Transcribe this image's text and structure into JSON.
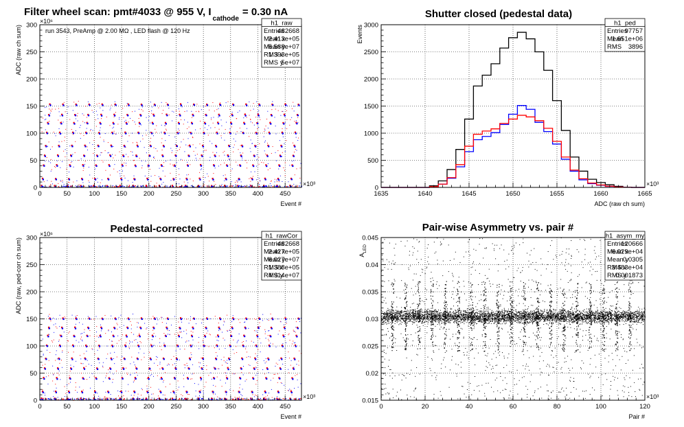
{
  "chart_data": [
    {
      "id": "raw",
      "type": "scatter",
      "title_main": "Filter wheel scan: pmt#4033 @   955 V, I",
      "title_sub": "cathode",
      "title_tail": "= 0.30 nA",
      "annotation": "run 3543, PreAmp @ 2.00 MΩ , LED flash @  120 Hz",
      "xlabel": "Event #",
      "ylabel": "ADC (raw ch sum)",
      "x_exponent": "×10³",
      "y_exponent": "×10⁶",
      "xlim": [
        0,
        480
      ],
      "ylim": [
        0,
        300
      ],
      "xticks": [
        0,
        50,
        100,
        150,
        200,
        250,
        300,
        350,
        400,
        450
      ],
      "yticks": [
        0,
        50,
        100,
        150,
        200,
        250,
        300
      ],
      "grid": true,
      "levels": [
        2,
        15,
        40,
        58,
        76,
        100,
        118,
        133,
        152
      ],
      "cycle_period": 24,
      "series": [
        {
          "color": "#ff0000"
        },
        {
          "color": "#0000ff"
        }
      ],
      "stats": {
        "name": "h1_raw",
        "rows": [
          {
            "label": "Entries",
            "value": "482668"
          },
          {
            "label": "Mean x",
            "value": "2.413e+05"
          },
          {
            "label": "Mean y",
            "value": "5.588e+07"
          },
          {
            "label": "RMS x",
            "value": "1.393e+05"
          },
          {
            "label": "RMS y",
            "value": "5e+07"
          }
        ]
      }
    },
    {
      "id": "ped",
      "type": "histogram",
      "title": "Shutter closed (pedestal data)",
      "xlabel": "ADC (raw ch sum)",
      "ylabel": "Events",
      "x_exponent": "×10³",
      "xlim": [
        1635,
        1665
      ],
      "ylim": [
        0,
        3000
      ],
      "xticks": [
        1635,
        1640,
        1645,
        1650,
        1655,
        1660,
        1665
      ],
      "yticks": [
        0,
        500,
        1000,
        1500,
        2000,
        2500,
        3000
      ],
      "grid": true,
      "x": [
        1641,
        1642,
        1643,
        1644,
        1645,
        1646,
        1647,
        1648,
        1649,
        1650,
        1651,
        1652,
        1653,
        1654,
        1655,
        1656,
        1657,
        1658,
        1659,
        1660,
        1661,
        1662,
        1663
      ],
      "series": [
        {
          "color": "#000000",
          "values": [
            30,
            120,
            330,
            700,
            1260,
            1870,
            2070,
            2280,
            2570,
            2760,
            2860,
            2740,
            2500,
            2160,
            1600,
            1050,
            560,
            300,
            150,
            90,
            50,
            20,
            5
          ]
        },
        {
          "color": "#0000ff",
          "values": [
            15,
            60,
            170,
            380,
            660,
            880,
            940,
            1010,
            1160,
            1350,
            1510,
            1440,
            1200,
            1030,
            800,
            520,
            300,
            140,
            70,
            40,
            20,
            8,
            2
          ]
        },
        {
          "color": "#ff0000",
          "values": [
            15,
            60,
            180,
            420,
            760,
            980,
            1040,
            1080,
            1180,
            1260,
            1330,
            1300,
            1230,
            1090,
            850,
            560,
            320,
            160,
            80,
            45,
            22,
            8,
            2
          ]
        }
      ],
      "stats": {
        "name": "h1_ped",
        "rows": [
          {
            "label": "Entries",
            "value": "97757"
          },
          {
            "label": "Mean",
            "value": "1.651e+06"
          },
          {
            "label": "RMS",
            "value": "3896"
          }
        ]
      }
    },
    {
      "id": "rawCor",
      "type": "scatter",
      "title": "Pedestal-corrected",
      "xlabel": "Event #",
      "ylabel": "ADC (raw, ped-corr ch sum)",
      "x_exponent": "×10³",
      "y_exponent": "×10⁶",
      "xlim": [
        0,
        480
      ],
      "ylim": [
        0,
        300
      ],
      "xticks": [
        0,
        50,
        100,
        150,
        200,
        250,
        300,
        350,
        400,
        450
      ],
      "yticks": [
        0,
        50,
        100,
        150,
        200,
        250,
        300
      ],
      "grid": true,
      "levels": [
        2,
        15,
        40,
        58,
        76,
        100,
        118,
        133,
        150
      ],
      "cycle_period": 24,
      "series": [
        {
          "color": "#ff0000"
        },
        {
          "color": "#0000ff"
        }
      ],
      "stats": {
        "name": "h1_rawCor",
        "rows": [
          {
            "label": "Entries",
            "value": "482668"
          },
          {
            "label": "Mean x",
            "value": "2.427e+05"
          },
          {
            "label": "Mean y",
            "value": "6.027e+07"
          },
          {
            "label": "RMS x",
            "value": "1.388e+05"
          },
          {
            "label": "RMS y",
            "value": "4.914e+07"
          }
        ]
      }
    },
    {
      "id": "asym",
      "type": "scatter",
      "title": "Pair-wise Asymmetry vs. pair #",
      "xlabel": "Pair #",
      "ylabel": "A_LED",
      "x_exponent": "×10³",
      "xlim": [
        0,
        120
      ],
      "ylim": [
        0.015,
        0.045
      ],
      "xticks": [
        0,
        20,
        40,
        60,
        80,
        100,
        120
      ],
      "yticks": [
        0.015,
        0.02,
        0.025,
        0.03,
        0.035,
        0.04,
        0.045
      ],
      "ytick_labels": [
        "0.015",
        "0.02",
        "0.025",
        "0.03",
        "0.035",
        "0.04",
        "0.045"
      ],
      "grid": true,
      "band_center": 0.0305,
      "band_halfwidth": 0.0012,
      "spike_period": 6,
      "series": [
        {
          "color": "#000000"
        }
      ],
      "stats": {
        "name": "h1_asym_my",
        "rows": [
          {
            "label": "Entries",
            "value": "120666"
          },
          {
            "label": "Mean x",
            "value": "6.029e+04"
          },
          {
            "label": "Mean y",
            "value": "0.0305"
          },
          {
            "label": "RMS x",
            "value": "3.483e+04"
          },
          {
            "label": "RMS y",
            "value": "0.001873"
          }
        ]
      }
    }
  ]
}
